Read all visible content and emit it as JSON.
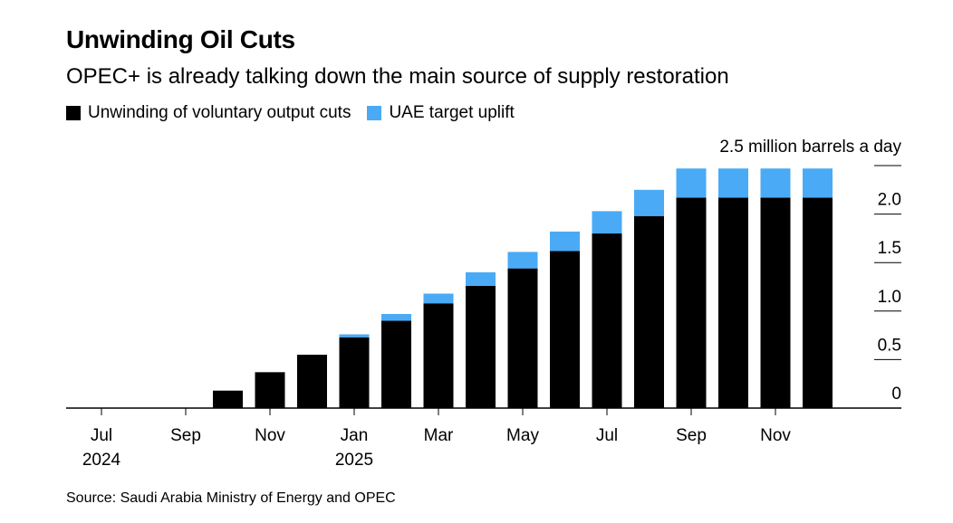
{
  "title": "Unwinding Oil Cuts",
  "subtitle": "OPEC+ is already talking down the main source of supply restoration",
  "source": "Source: Saudi Arabia Ministry of Energy and OPEC",
  "colors": {
    "series1": "#000000",
    "series2": "#4aaaf5",
    "grid": "#000000"
  },
  "chart_data": {
    "type": "bar",
    "stacked": true,
    "unit_label": "2.5 million barrels a day",
    "categories": [
      "2024-07",
      "2024-08",
      "2024-09",
      "2024-10",
      "2024-11",
      "2024-12",
      "2025-01",
      "2025-02",
      "2025-03",
      "2025-04",
      "2025-05",
      "2025-06",
      "2025-07",
      "2025-08",
      "2025-09",
      "2025-10",
      "2025-11",
      "2025-12"
    ],
    "series": [
      {
        "name": "Unwinding of voluntary output cuts",
        "values": [
          0,
          0,
          0,
          0.18,
          0.37,
          0.55,
          0.73,
          0.9,
          1.08,
          1.26,
          1.44,
          1.62,
          1.8,
          1.98,
          2.17,
          2.17,
          2.17,
          2.17
        ]
      },
      {
        "name": "UAE target uplift",
        "values": [
          0,
          0,
          0,
          0,
          0,
          0,
          0.03,
          0.07,
          0.1,
          0.14,
          0.17,
          0.2,
          0.23,
          0.27,
          0.3,
          0.3,
          0.3,
          0.3
        ]
      }
    ],
    "ylim": [
      0,
      2.5
    ],
    "y_ticks": [
      {
        "value": 0,
        "label": "0"
      },
      {
        "value": 0.5,
        "label": "0.5"
      },
      {
        "value": 1.0,
        "label": "1.0"
      },
      {
        "value": 1.5,
        "label": "1.5"
      },
      {
        "value": 2.0,
        "label": "2.0"
      }
    ],
    "x_ticks": [
      {
        "category": "2024-07",
        "label": "Jul",
        "sublabel": "2024"
      },
      {
        "category": "2024-09",
        "label": "Sep",
        "sublabel": ""
      },
      {
        "category": "2024-11",
        "label": "Nov",
        "sublabel": ""
      },
      {
        "category": "2025-01",
        "label": "Jan",
        "sublabel": "2025"
      },
      {
        "category": "2025-03",
        "label": "Mar",
        "sublabel": ""
      },
      {
        "category": "2025-05",
        "label": "May",
        "sublabel": ""
      },
      {
        "category": "2025-07",
        "label": "Jul",
        "sublabel": ""
      },
      {
        "category": "2025-09",
        "label": "Sep",
        "sublabel": ""
      },
      {
        "category": "2025-11",
        "label": "Nov",
        "sublabel": ""
      }
    ],
    "legend": "top-left",
    "grid": true,
    "y_axis_side": "right"
  }
}
